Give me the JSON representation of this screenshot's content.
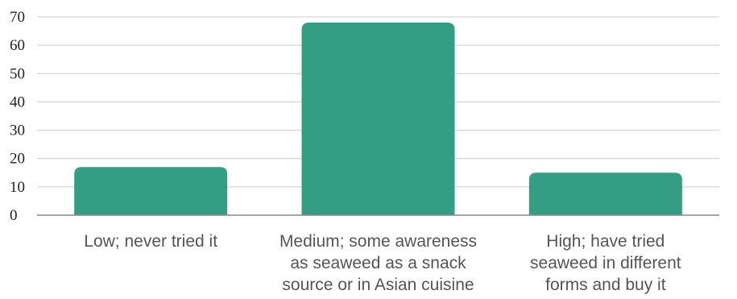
{
  "chart_data": {
    "type": "bar",
    "title": "",
    "xlabel": "",
    "ylabel": "",
    "categories": [
      [
        "Low; never tried it"
      ],
      [
        "Medium; some awareness",
        "as seaweed as a snack",
        "source or in Asian cuisine"
      ],
      [
        "High; have tried",
        "seaweed in different",
        "forms and buy it"
      ]
    ],
    "values": [
      17,
      68,
      15
    ],
    "ylim": [
      0,
      70
    ],
    "yticks": [
      0,
      10,
      20,
      30,
      40,
      50,
      60,
      70
    ],
    "grid": true,
    "legend": "none",
    "colors": {
      "bar": "#339e84",
      "grid": "#cccccc",
      "axis": "#888888",
      "label": "#555555"
    }
  }
}
